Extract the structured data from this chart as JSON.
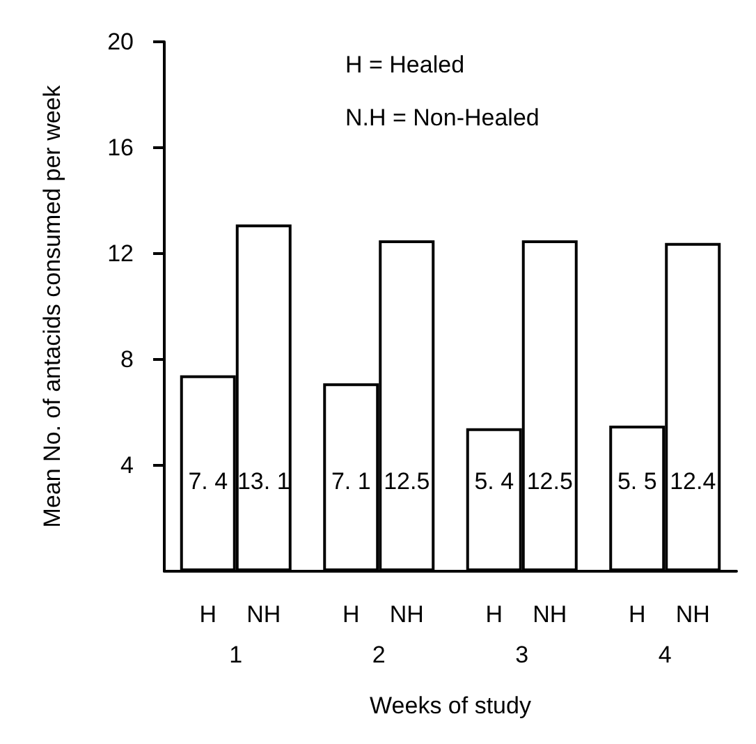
{
  "chart_data": {
    "type": "bar",
    "xlabel": "Weeks of study",
    "ylabel": "Mean No. of antacids consumed per week",
    "categories": [
      "1",
      "2",
      "3",
      "4"
    ],
    "series": [
      {
        "name": "H",
        "color": "#ffffff",
        "values": [
          7.4,
          7.1,
          5.4,
          5.5
        ]
      },
      {
        "name": "NH",
        "color": "#ffffff",
        "values": [
          13.1,
          12.5,
          12.5,
          12.4
        ]
      }
    ],
    "value_labels": [
      [
        "7. 4",
        "7. 1",
        "5. 4",
        "5. 5"
      ],
      [
        "13. 1",
        "12.5",
        "12.5",
        "12.4"
      ]
    ],
    "ylim": [
      0,
      20
    ],
    "yticks": [
      4,
      8,
      12,
      16,
      20
    ],
    "grid": false,
    "legend": false,
    "annotations": [
      "H = Healed",
      "N.H = Non-Healed"
    ]
  }
}
